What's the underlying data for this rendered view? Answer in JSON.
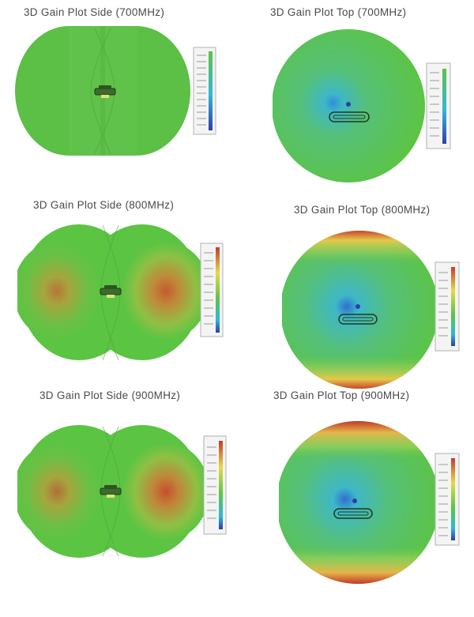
{
  "figure": {
    "panels": [
      {
        "title": "3D Gain Plot Side (700MHz)",
        "view": "side",
        "frequency": "700MHz"
      },
      {
        "title": "3D Gain Plot Top (700MHz)",
        "view": "top",
        "frequency": "700MHz"
      },
      {
        "title": "3D Gain Plot Side (800MHz)",
        "view": "side",
        "frequency": "800MHz"
      },
      {
        "title": "3D Gain Plot Top (800MHz)",
        "view": "top",
        "frequency": "800MHz"
      },
      {
        "title": "3D Gain Plot Side (900MHz)",
        "view": "side",
        "frequency": "900MHz"
      },
      {
        "title": "3D Gain Plot Top (900MHz)",
        "view": "top",
        "frequency": "900MHz"
      }
    ],
    "colors": {
      "low": "#2c3fa8",
      "mid_low": "#31b8d8",
      "mid": "#5cc443",
      "mid_high": "#e5d94a",
      "high": "#c83a2a"
    }
  }
}
